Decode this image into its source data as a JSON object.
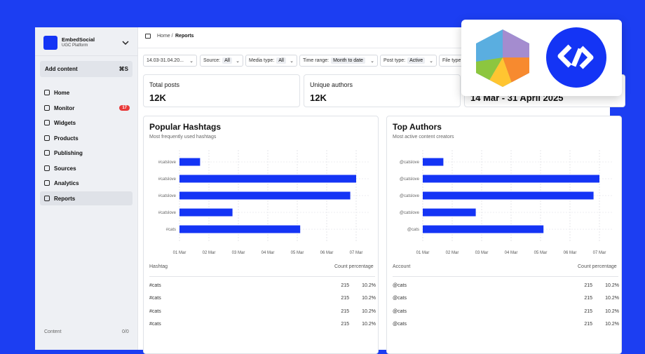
{
  "sidebar": {
    "brand": "EmbedSocial",
    "subtitle": "UGC Platform",
    "add_content": "Add content",
    "shortcut": "⌘S",
    "nav": [
      {
        "label": "Home"
      },
      {
        "label": "Monitor",
        "badge": "17"
      },
      {
        "label": "Widgets"
      },
      {
        "label": "Products"
      },
      {
        "label": "Publishing"
      },
      {
        "label": "Sources"
      },
      {
        "label": "Analytics"
      },
      {
        "label": "Reports"
      }
    ],
    "footer": {
      "label": "Content",
      "count": "0/0"
    }
  },
  "header": {
    "crumb": "Home /",
    "current": "Reports"
  },
  "filters": [
    {
      "label": "14.03-31.04.20..."
    },
    {
      "label": "Source:",
      "value": "All"
    },
    {
      "label": "Media type:",
      "value": "All"
    },
    {
      "label": "Time range:",
      "value": "Month to date"
    },
    {
      "label": "Post type:",
      "value": "Active"
    },
    {
      "label": "File type"
    }
  ],
  "stats": [
    {
      "label": "Total posts",
      "value": "12K"
    },
    {
      "label": "Unique authors",
      "value": "12K"
    },
    {
      "value": "14 Mar - 31 April 2025"
    }
  ],
  "panels": [
    {
      "title": "Popular Hashtags",
      "subtitle": "Most frequently used hashtags",
      "chart": {
        "type": "bar",
        "categories": [
          "#catslove",
          "#catslove",
          "#catslove",
          "#catslove",
          "#cats"
        ],
        "values": [
          0.7,
          6.0,
          5.8,
          1.8,
          4.1
        ],
        "color": "#1434f5",
        "xlim": [
          0,
          6
        ],
        "xticks": [
          {
            "value": 0,
            "label": "01 Mar"
          },
          {
            "value": 1,
            "label": "02 Mar"
          },
          {
            "value": 2,
            "label": "03 Mar"
          },
          {
            "value": 3,
            "label": "04 Mar"
          },
          {
            "value": 4,
            "label": "05 Mar"
          },
          {
            "value": 5,
            "label": "06 Mar"
          },
          {
            "value": 6,
            "label": "07 Mar"
          }
        ]
      },
      "table": {
        "headers": [
          "Hashtag",
          "Count percentage"
        ],
        "rows": [
          [
            "#cats",
            215,
            "10.2%"
          ],
          [
            "#cats",
            215,
            "10.2%"
          ],
          [
            "#cats",
            215,
            "10.2%"
          ],
          [
            "#cats",
            215,
            "10.2%"
          ]
        ]
      }
    },
    {
      "title": "Top Authors",
      "subtitle": "Most active content creators",
      "chart": {
        "type": "bar",
        "categories": [
          "@catslove",
          "@catslove",
          "@catslove",
          "@catslove",
          "@cats"
        ],
        "values": [
          0.7,
          6.0,
          5.8,
          1.8,
          4.1
        ],
        "color": "#1434f5",
        "xlim": [
          0,
          6
        ],
        "xticks": [
          {
            "value": 0,
            "label": "01 Mar"
          },
          {
            "value": 1,
            "label": "02 Mar"
          },
          {
            "value": 2,
            "label": "03 Mar"
          },
          {
            "value": 3,
            "label": "04 Mar"
          },
          {
            "value": 4,
            "label": "05 Mar"
          },
          {
            "value": 5,
            "label": "06 Mar"
          },
          {
            "value": 6,
            "label": "07 Mar"
          }
        ]
      },
      "table": {
        "headers": [
          "Account",
          "Count percentage"
        ],
        "rows": [
          [
            "@cats",
            215,
            "10.2%"
          ],
          [
            "@cats",
            215,
            "10.2%"
          ],
          [
            "@cats",
            215,
            "10.2%"
          ],
          [
            "@cats",
            215,
            "10.2%"
          ]
        ]
      }
    }
  ]
}
